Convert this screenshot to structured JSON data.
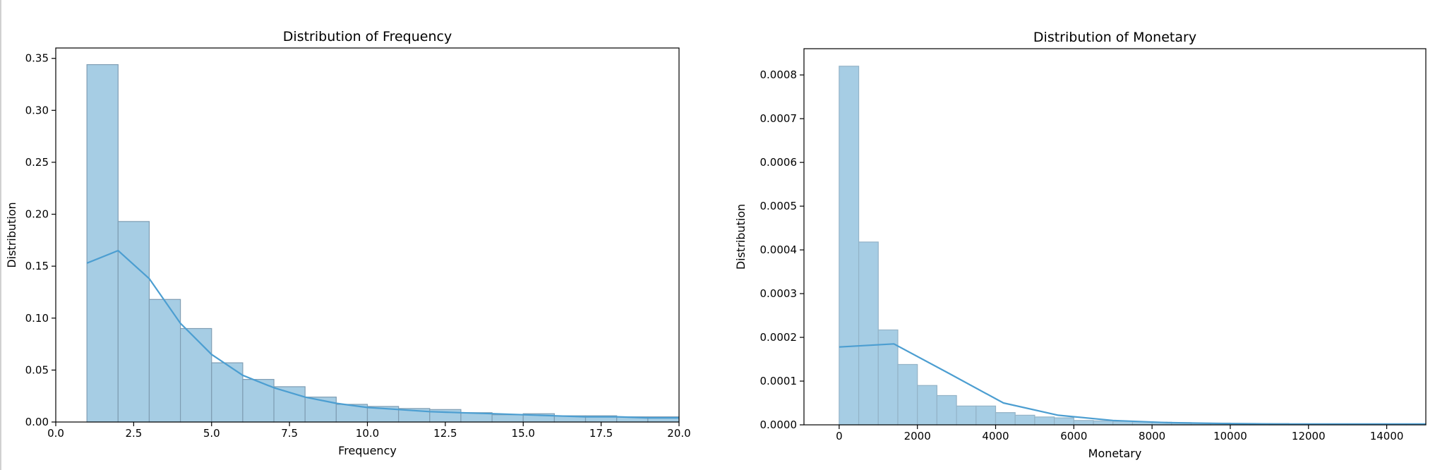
{
  "chart_data": [
    {
      "type": "bar",
      "title": "Distribution of Frequency",
      "xlabel": "Frequency",
      "ylabel": "Distribution",
      "xlim": [
        0,
        20
      ],
      "ylim": [
        0,
        0.36
      ],
      "xticks": [
        "0.0",
        "2.5",
        "5.0",
        "7.5",
        "10.0",
        "12.5",
        "15.0",
        "17.5",
        "20.0"
      ],
      "yticks": [
        "0.00",
        "0.05",
        "0.10",
        "0.15",
        "0.20",
        "0.25",
        "0.30",
        "0.35"
      ],
      "bins": [
        {
          "x0": 1,
          "x1": 2,
          "value": 0.344
        },
        {
          "x0": 2,
          "x1": 3,
          "value": 0.193
        },
        {
          "x0": 3,
          "x1": 4,
          "value": 0.118
        },
        {
          "x0": 4,
          "x1": 5,
          "value": 0.09
        },
        {
          "x0": 5,
          "x1": 6,
          "value": 0.057
        },
        {
          "x0": 6,
          "x1": 7,
          "value": 0.041
        },
        {
          "x0": 7,
          "x1": 8,
          "value": 0.034
        },
        {
          "x0": 8,
          "x1": 9,
          "value": 0.024
        },
        {
          "x0": 9,
          "x1": 10,
          "value": 0.017
        },
        {
          "x0": 10,
          "x1": 11,
          "value": 0.015
        },
        {
          "x0": 11,
          "x1": 12,
          "value": 0.013
        },
        {
          "x0": 12,
          "x1": 13,
          "value": 0.012
        },
        {
          "x0": 13,
          "x1": 14,
          "value": 0.009
        },
        {
          "x0": 14,
          "x1": 15,
          "value": 0.007
        },
        {
          "x0": 15,
          "x1": 16,
          "value": 0.008
        },
        {
          "x0": 16,
          "x1": 17,
          "value": 0.006
        },
        {
          "x0": 17,
          "x1": 18,
          "value": 0.006
        },
        {
          "x0": 18,
          "x1": 19,
          "value": 0.005
        },
        {
          "x0": 19,
          "x1": 20,
          "value": 0.005
        }
      ],
      "kde": {
        "x": [
          1,
          2,
          3,
          4,
          5,
          6,
          7,
          8,
          9,
          10,
          11,
          12,
          13,
          14,
          15,
          16,
          17,
          18,
          19,
          20
        ],
        "y": [
          0.153,
          0.165,
          0.138,
          0.095,
          0.065,
          0.045,
          0.033,
          0.024,
          0.018,
          0.014,
          0.012,
          0.01,
          0.009,
          0.008,
          0.007,
          0.006,
          0.005,
          0.005,
          0.004,
          0.004
        ]
      },
      "grid": false,
      "colors": {
        "bar_fill": "#a6cde4",
        "bar_edge": "#7f9db3",
        "kde_line": "#4c9ed1"
      }
    },
    {
      "type": "bar",
      "title": "Distribution of Monetary",
      "xlabel": "Monetary",
      "ylabel": "Distribution",
      "xlim": [
        -900,
        15000
      ],
      "ylim": [
        0,
        0.00086
      ],
      "xticks": [
        "0",
        "2000",
        "4000",
        "6000",
        "8000",
        "10000",
        "12000",
        "14000"
      ],
      "yticks": [
        "0.0000",
        "0.0001",
        "0.0002",
        "0.0003",
        "0.0004",
        "0.0005",
        "0.0006",
        "0.0007",
        "0.0008"
      ],
      "bins": [
        {
          "x0": 0,
          "x1": 500,
          "value": 0.00082
        },
        {
          "x0": 500,
          "x1": 1000,
          "value": 0.000418
        },
        {
          "x0": 1000,
          "x1": 1500,
          "value": 0.000217
        },
        {
          "x0": 1500,
          "x1": 2000,
          "value": 0.000138
        },
        {
          "x0": 2000,
          "x1": 2500,
          "value": 9e-05
        },
        {
          "x0": 2500,
          "x1": 3000,
          "value": 6.7e-05
        },
        {
          "x0": 3000,
          "x1": 3500,
          "value": 4.3e-05
        },
        {
          "x0": 3500,
          "x1": 4000,
          "value": 4.3e-05
        },
        {
          "x0": 4000,
          "x1": 4500,
          "value": 2.8e-05
        },
        {
          "x0": 4500,
          "x1": 5000,
          "value": 2.2e-05
        },
        {
          "x0": 5000,
          "x1": 5500,
          "value": 1.8e-05
        },
        {
          "x0": 5500,
          "x1": 6000,
          "value": 1.6e-05
        },
        {
          "x0": 6000,
          "x1": 6500,
          "value": 1e-05
        },
        {
          "x0": 6500,
          "x1": 7000,
          "value": 9e-06
        },
        {
          "x0": 7000,
          "x1": 7500,
          "value": 8e-06
        },
        {
          "x0": 7500,
          "x1": 8000,
          "value": 7e-06
        },
        {
          "x0": 8000,
          "x1": 8500,
          "value": 6e-06
        },
        {
          "x0": 8500,
          "x1": 9000,
          "value": 5e-06
        },
        {
          "x0": 9000,
          "x1": 9500,
          "value": 4e-06
        },
        {
          "x0": 9500,
          "x1": 10000,
          "value": 4e-06
        },
        {
          "x0": 10000,
          "x1": 10500,
          "value": 3e-06
        },
        {
          "x0": 10500,
          "x1": 11000,
          "value": 3e-06
        },
        {
          "x0": 11000,
          "x1": 11500,
          "value": 3e-06
        },
        {
          "x0": 11500,
          "x1": 12000,
          "value": 2e-06
        },
        {
          "x0": 12000,
          "x1": 12500,
          "value": 2e-06
        },
        {
          "x0": 12500,
          "x1": 13000,
          "value": 2e-06
        },
        {
          "x0": 13000,
          "x1": 13500,
          "value": 2e-06
        },
        {
          "x0": 13500,
          "x1": 14000,
          "value": 2e-06
        },
        {
          "x0": 14000,
          "x1": 14500,
          "value": 2e-06
        },
        {
          "x0": 14500,
          "x1": 15000,
          "value": 2e-06
        }
      ],
      "kde": {
        "x": [
          0,
          1400,
          2800,
          4200,
          5600,
          7000,
          8400,
          9800,
          11200,
          12600,
          14000,
          15000
        ],
        "y": [
          0.000178,
          0.000185,
          0.000118,
          5e-05,
          2.2e-05,
          1e-05,
          5e-06,
          3e-06,
          2e-06,
          2e-06,
          2e-06,
          2e-06
        ]
      },
      "grid": false,
      "colors": {
        "bar_fill": "#a6cde4",
        "bar_edge": "#93b3c7",
        "kde_line": "#4c9ed1"
      }
    }
  ]
}
